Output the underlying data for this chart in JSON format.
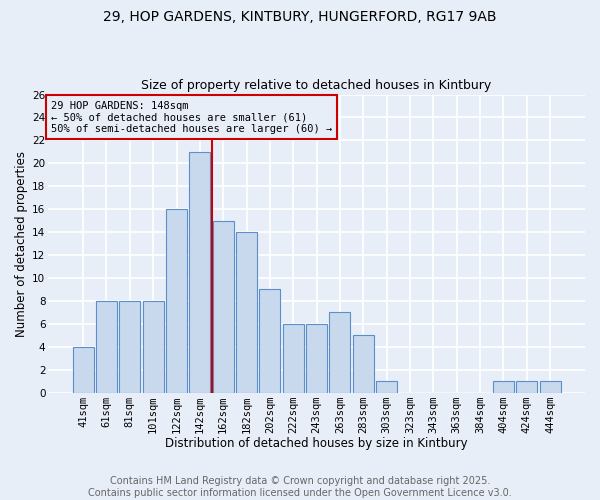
{
  "title_line1": "29, HOP GARDENS, KINTBURY, HUNGERFORD, RG17 9AB",
  "title_line2": "Size of property relative to detached houses in Kintbury",
  "xlabel": "Distribution of detached houses by size in Kintbury",
  "ylabel": "Number of detached properties",
  "bar_labels": [
    "41sqm",
    "61sqm",
    "81sqm",
    "101sqm",
    "122sqm",
    "142sqm",
    "162sqm",
    "182sqm",
    "202sqm",
    "222sqm",
    "243sqm",
    "263sqm",
    "283sqm",
    "303sqm",
    "323sqm",
    "343sqm",
    "363sqm",
    "384sqm",
    "404sqm",
    "424sqm",
    "444sqm"
  ],
  "bar_values": [
    4,
    8,
    8,
    8,
    16,
    21,
    15,
    14,
    9,
    6,
    6,
    7,
    5,
    1,
    0,
    0,
    0,
    0,
    1,
    1,
    1
  ],
  "bar_color": "#c9d9ed",
  "bar_edge_color": "#5b8fc9",
  "vline_index": 6,
  "vline_color": "#cc0000",
  "annotation_text": "29 HOP GARDENS: 148sqm\n← 50% of detached houses are smaller (61)\n50% of semi-detached houses are larger (60) →",
  "annotation_box_color": "#cc0000",
  "ylim": [
    0,
    26
  ],
  "yticks": [
    0,
    2,
    4,
    6,
    8,
    10,
    12,
    14,
    16,
    18,
    20,
    22,
    24,
    26
  ],
  "background_color": "#e8eef8",
  "grid_color": "#ffffff",
  "footer_line1": "Contains HM Land Registry data © Crown copyright and database right 2025.",
  "footer_line2": "Contains public sector information licensed under the Open Government Licence v3.0.",
  "title_fontsize": 10,
  "subtitle_fontsize": 9,
  "axis_label_fontsize": 8.5,
  "tick_fontsize": 7.5,
  "footer_fontsize": 7
}
